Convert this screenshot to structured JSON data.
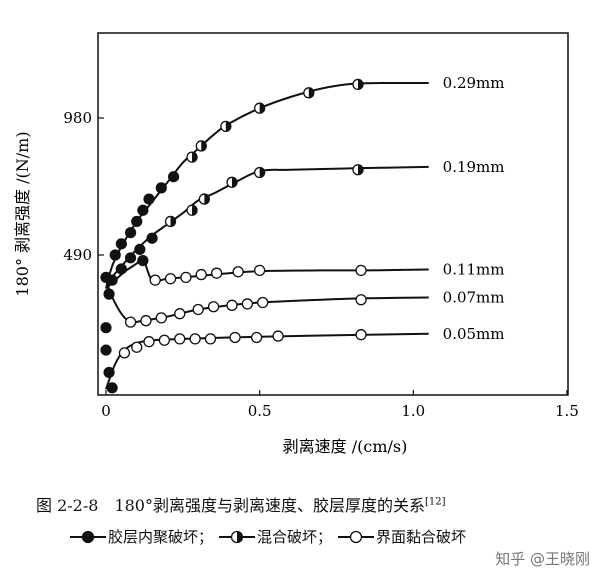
{
  "chart_data": {
    "type": "line",
    "xlabel": "剥离速度 /(cm/s)",
    "ylabel": "180° 剥离强度 /(N/m)",
    "xlim": [
      0,
      1.5
    ],
    "ylim": [
      0,
      1330
    ],
    "x_ticks": [
      0,
      0.5,
      1.0,
      1.5
    ],
    "x_tick_labels": [
      "0",
      "0.5",
      "1.0",
      "1.5"
    ],
    "y_ticks": [
      490,
      980
    ],
    "y_tick_labels": [
      "490",
      "980"
    ],
    "grid": false,
    "legend": "bottom",
    "series": [
      {
        "name": "0.29mm",
        "line": [
          [
            0,
            370
          ],
          [
            0.02,
            450
          ],
          [
            0.05,
            520
          ],
          [
            0.1,
            610
          ],
          [
            0.15,
            680
          ],
          [
            0.2,
            750
          ],
          [
            0.25,
            820
          ],
          [
            0.3,
            870
          ],
          [
            0.35,
            920
          ],
          [
            0.4,
            960
          ],
          [
            0.5,
            1015
          ],
          [
            0.6,
            1055
          ],
          [
            0.7,
            1085
          ],
          [
            0.8,
            1102
          ],
          [
            0.9,
            1105
          ],
          [
            1.05,
            1105
          ]
        ],
        "markers": [
          {
            "x": 0.03,
            "y": 490,
            "type": "filled"
          },
          {
            "x": 0.05,
            "y": 530,
            "type": "filled"
          },
          {
            "x": 0.08,
            "y": 570,
            "type": "filled"
          },
          {
            "x": 0.1,
            "y": 610,
            "type": "filled"
          },
          {
            "x": 0.12,
            "y": 650,
            "type": "filled"
          },
          {
            "x": 0.14,
            "y": 690,
            "type": "filled"
          },
          {
            "x": 0.18,
            "y": 730,
            "type": "filled"
          },
          {
            "x": 0.22,
            "y": 770,
            "type": "filled"
          },
          {
            "x": 0.28,
            "y": 840,
            "type": "mixed"
          },
          {
            "x": 0.31,
            "y": 880,
            "type": "mixed"
          },
          {
            "x": 0.39,
            "y": 950,
            "type": "mixed"
          },
          {
            "x": 0.5,
            "y": 1015,
            "type": "mixed"
          },
          {
            "x": 0.66,
            "y": 1070,
            "type": "mixed"
          },
          {
            "x": 0.82,
            "y": 1100,
            "type": "mixed"
          }
        ]
      },
      {
        "name": "0.19mm",
        "line": [
          [
            0,
            370
          ],
          [
            0.02,
            410
          ],
          [
            0.05,
            450
          ],
          [
            0.1,
            510
          ],
          [
            0.15,
            560
          ],
          [
            0.2,
            600
          ],
          [
            0.25,
            640
          ],
          [
            0.3,
            685
          ],
          [
            0.35,
            710
          ],
          [
            0.42,
            750
          ],
          [
            0.5,
            790
          ],
          [
            0.6,
            795
          ],
          [
            0.8,
            800
          ],
          [
            1.05,
            805
          ]
        ],
        "markers": [
          {
            "x": 0.02,
            "y": 400,
            "type": "filled"
          },
          {
            "x": 0.05,
            "y": 440,
            "type": "filled"
          },
          {
            "x": 0.08,
            "y": 480,
            "type": "filled"
          },
          {
            "x": 0.11,
            "y": 510,
            "type": "filled"
          },
          {
            "x": 0.15,
            "y": 550,
            "type": "filled"
          },
          {
            "x": 0.21,
            "y": 610,
            "type": "mixed"
          },
          {
            "x": 0.28,
            "y": 650,
            "type": "mixed"
          },
          {
            "x": 0.32,
            "y": 690,
            "type": "mixed"
          },
          {
            "x": 0.41,
            "y": 750,
            "type": "mixed"
          },
          {
            "x": 0.5,
            "y": 785,
            "type": "mixed"
          },
          {
            "x": 0.82,
            "y": 795,
            "type": "mixed"
          }
        ]
      },
      {
        "name": "0.11mm",
        "line": [
          [
            0,
            370
          ],
          [
            0.03,
            400
          ],
          [
            0.06,
            430
          ],
          [
            0.1,
            460
          ],
          [
            0.12,
            480
          ],
          [
            0.15,
            400
          ],
          [
            0.2,
            405
          ],
          [
            0.3,
            415
          ],
          [
            0.4,
            425
          ],
          [
            0.5,
            432
          ],
          [
            0.7,
            435
          ],
          [
            0.85,
            435
          ],
          [
            1.05,
            438
          ]
        ],
        "markers": [
          {
            "x": 0.12,
            "y": 470,
            "type": "filled"
          },
          {
            "x": 0.16,
            "y": 400,
            "type": "open"
          },
          {
            "x": 0.21,
            "y": 405,
            "type": "open"
          },
          {
            "x": 0.26,
            "y": 410,
            "type": "open"
          },
          {
            "x": 0.31,
            "y": 420,
            "type": "open"
          },
          {
            "x": 0.36,
            "y": 425,
            "type": "open"
          },
          {
            "x": 0.43,
            "y": 430,
            "type": "open"
          },
          {
            "x": 0.5,
            "y": 435,
            "type": "open"
          },
          {
            "x": 0.83,
            "y": 435,
            "type": "open"
          }
        ]
      },
      {
        "name": "0.07mm",
        "line": [
          [
            0,
            400
          ],
          [
            0.02,
            340
          ],
          [
            0.05,
            280
          ],
          [
            0.08,
            250
          ],
          [
            0.12,
            255
          ],
          [
            0.2,
            270
          ],
          [
            0.3,
            295
          ],
          [
            0.4,
            310
          ],
          [
            0.5,
            320
          ],
          [
            0.7,
            330
          ],
          [
            0.85,
            335
          ],
          [
            1.05,
            338
          ]
        ],
        "markers": [
          {
            "x": 0.0,
            "y": 410,
            "type": "filled"
          },
          {
            "x": 0.01,
            "y": 350,
            "type": "filled"
          },
          {
            "x": 0.08,
            "y": 250,
            "type": "open"
          },
          {
            "x": 0.13,
            "y": 255,
            "type": "open"
          },
          {
            "x": 0.18,
            "y": 265,
            "type": "open"
          },
          {
            "x": 0.24,
            "y": 280,
            "type": "open"
          },
          {
            "x": 0.3,
            "y": 295,
            "type": "open"
          },
          {
            "x": 0.35,
            "y": 305,
            "type": "open"
          },
          {
            "x": 0.41,
            "y": 310,
            "type": "open"
          },
          {
            "x": 0.46,
            "y": 315,
            "type": "open"
          },
          {
            "x": 0.51,
            "y": 320,
            "type": "open"
          },
          {
            "x": 0.83,
            "y": 330,
            "type": "open"
          }
        ]
      },
      {
        "name": "0.05mm",
        "line": [
          [
            0.0,
            10
          ],
          [
            0.03,
            100
          ],
          [
            0.06,
            150
          ],
          [
            0.1,
            175
          ],
          [
            0.15,
            185
          ],
          [
            0.25,
            190
          ],
          [
            0.4,
            195
          ],
          [
            0.6,
            200
          ],
          [
            0.85,
            205
          ],
          [
            1.05,
            208
          ]
        ],
        "markers": [
          {
            "x": 0.0,
            "y": 230,
            "type": "filled"
          },
          {
            "x": 0.0,
            "y": 150,
            "type": "filled"
          },
          {
            "x": 0.01,
            "y": 70,
            "type": "filled"
          },
          {
            "x": 0.02,
            "y": 15,
            "type": "filled"
          },
          {
            "x": 0.06,
            "y": 140,
            "type": "open"
          },
          {
            "x": 0.1,
            "y": 160,
            "type": "open"
          },
          {
            "x": 0.14,
            "y": 180,
            "type": "open"
          },
          {
            "x": 0.19,
            "y": 185,
            "type": "open"
          },
          {
            "x": 0.24,
            "y": 190,
            "type": "open"
          },
          {
            "x": 0.29,
            "y": 190,
            "type": "open"
          },
          {
            "x": 0.34,
            "y": 190,
            "type": "open"
          },
          {
            "x": 0.42,
            "y": 195,
            "type": "open"
          },
          {
            "x": 0.49,
            "y": 195,
            "type": "open"
          },
          {
            "x": 0.56,
            "y": 200,
            "type": "open"
          },
          {
            "x": 0.83,
            "y": 205,
            "type": "open"
          }
        ]
      }
    ]
  },
  "caption": {
    "text": "图 2-2-8　180°剥离强度与剥离速度、胶层厚度的关系",
    "ref": "[12]"
  },
  "legend_items": [
    {
      "marker": "filled",
      "label": "胶层内聚破坏；"
    },
    {
      "marker": "mixed",
      "label": "混合破坏；"
    },
    {
      "marker": "open",
      "label": "界面黏合破坏"
    }
  ],
  "watermark": "知乎 @王晓刚"
}
